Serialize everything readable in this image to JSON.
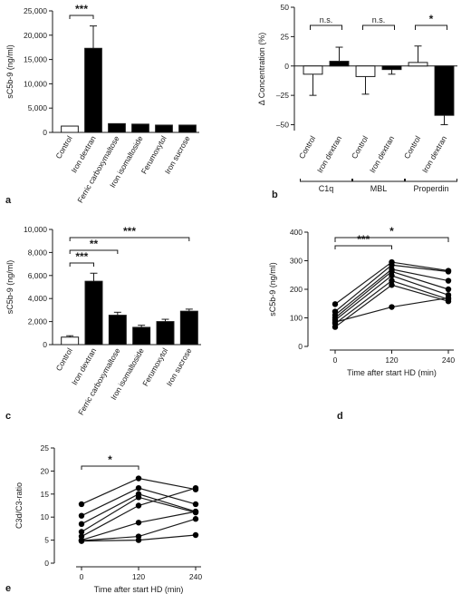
{
  "chart_data": [
    {
      "panel": "a",
      "type": "bar",
      "ylabel": "sC5b-9 (ng/ml)",
      "ylim": [
        0,
        25000
      ],
      "yticks": [
        "0",
        "5,000",
        "10,000",
        "15,000",
        "20,000",
        "25,000"
      ],
      "categories": [
        "Control",
        "Iron dextran",
        "Ferric carboxymaltose",
        "Iron isomaltoside",
        "Ferumoxytol",
        "Iron sucrose"
      ],
      "values": [
        1300,
        17300,
        1800,
        1700,
        1500,
        1500
      ],
      "errors": [
        0,
        4600,
        0,
        0,
        0,
        0
      ],
      "fills": [
        "open",
        "filled",
        "filled",
        "filled",
        "filled",
        "filled"
      ],
      "significance": [
        {
          "from": 0,
          "to": 1,
          "label": "***"
        }
      ]
    },
    {
      "panel": "b",
      "type": "bar",
      "ylabel": "Δ Concentration (%)",
      "ylim": [
        -55,
        50
      ],
      "yticks": [
        "50",
        "25",
        "0",
        "–25",
        "–50"
      ],
      "categories": [
        "Control",
        "Iron dextran",
        "Control",
        "Iron dextran",
        "Control",
        "Iron dextran"
      ],
      "groups": [
        "C1q",
        "MBL",
        "Properdin"
      ],
      "values": [
        -7,
        4,
        -9,
        -3,
        3,
        -42
      ],
      "err_low": [
        18,
        0,
        15,
        4,
        0,
        8
      ],
      "err_high": [
        0,
        12,
        0,
        0,
        14,
        0
      ],
      "fills": [
        "open",
        "filled",
        "open",
        "filled",
        "open",
        "filled"
      ],
      "significance": [
        {
          "from": 0,
          "to": 1,
          "label": "n.s."
        },
        {
          "from": 2,
          "to": 3,
          "label": "n.s."
        },
        {
          "from": 4,
          "to": 5,
          "label": "*"
        }
      ]
    },
    {
      "panel": "c",
      "type": "bar",
      "ylabel": "sC5b-9 (ng/ml)",
      "ylim": [
        0,
        10000
      ],
      "yticks": [
        "0",
        "2,000",
        "4,000",
        "6,000",
        "8,000",
        "10,000"
      ],
      "categories": [
        "Control",
        "Iron dextran",
        "Ferric carboxymaltose",
        "Iron isomaltoside",
        "Ferumoxytol",
        "Iron sucrose"
      ],
      "values": [
        650,
        5500,
        2550,
        1500,
        2000,
        2900
      ],
      "errors": [
        120,
        700,
        260,
        180,
        200,
        180
      ],
      "fills": [
        "open",
        "filled",
        "filled",
        "filled",
        "filled",
        "filled"
      ],
      "significance": [
        {
          "from": 0,
          "to": 1,
          "label": "***"
        },
        {
          "from": 0,
          "to": 2,
          "label": "**"
        },
        {
          "from": 0,
          "to": 5,
          "label": "***"
        }
      ]
    },
    {
      "panel": "d",
      "type": "line",
      "xlabel": "Time after start HD (min)",
      "ylabel": "sC5b-9 (ng/ml)",
      "x": [
        0,
        120,
        240
      ],
      "xticks": [
        "0",
        "120",
        "240"
      ],
      "ylim": [
        0,
        400
      ],
      "yticks": [
        "0",
        "100",
        "200",
        "300",
        "400"
      ],
      "series": [
        {
          "values": [
            148,
            295,
            265
          ]
        },
        {
          "values": [
            122,
            285,
            262
          ]
        },
        {
          "values": [
            110,
            270,
            230
          ]
        },
        {
          "values": [
            100,
            262,
            200
          ]
        },
        {
          "values": [
            92,
            248,
            180
          ]
        },
        {
          "values": [
            80,
            230,
            165
          ]
        },
        {
          "values": [
            68,
            215,
            158
          ]
        },
        {
          "values": [
            85,
            138,
            170
          ]
        }
      ],
      "significance": [
        {
          "from": 0,
          "to": 1,
          "label": "***"
        },
        {
          "from": 0,
          "to": 2,
          "label": "*"
        }
      ]
    },
    {
      "panel": "e",
      "type": "line",
      "xlabel": "Time after start HD (min)",
      "ylabel": "C3d/C3-ratio",
      "x": [
        0,
        120,
        240
      ],
      "xticks": [
        "0",
        "120",
        "240"
      ],
      "ylim": [
        0,
        25
      ],
      "yticks": [
        "0",
        "5",
        "10",
        "15",
        "20",
        "25"
      ],
      "series": [
        {
          "values": [
            12.8,
            18.4,
            16.0
          ]
        },
        {
          "values": [
            10.3,
            16.3,
            12.8
          ]
        },
        {
          "values": [
            8.5,
            15.0,
            11.2
          ]
        },
        {
          "values": [
            6.8,
            14.3,
            11.0
          ]
        },
        {
          "values": [
            5.8,
            12.5,
            16.3
          ]
        },
        {
          "values": [
            5.0,
            8.8,
            11.2
          ]
        },
        {
          "values": [
            4.9,
            5.8,
            9.6
          ]
        },
        {
          "values": [
            4.8,
            5.0,
            6.1
          ]
        }
      ],
      "significance": [
        {
          "from": 0,
          "to": 1,
          "label": "*"
        }
      ]
    }
  ],
  "panel_labels": {
    "b_groups": [
      "C1q",
      "MBL",
      "Properdin"
    ]
  }
}
